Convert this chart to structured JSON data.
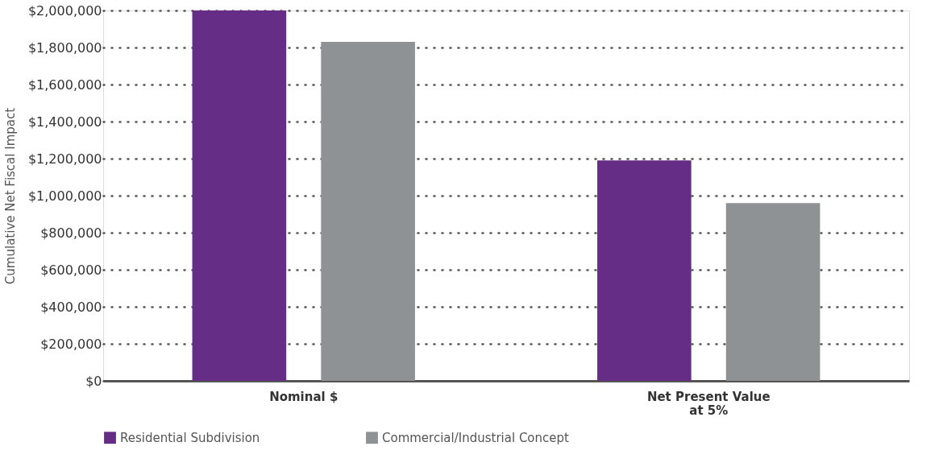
{
  "chart_data": {
    "type": "bar",
    "ylabel": "Cumulative Net Fiscal Impact",
    "categories": [
      "Nominal $",
      "Net Present Value\nat 5%"
    ],
    "series": [
      {
        "name": "Residential Subdivision",
        "color": "#652d86",
        "values": [
          2000000,
          1190000
        ]
      },
      {
        "name": "Commercial/Industrial Concept",
        "color": "#8f9295",
        "values": [
          1830000,
          960000
        ]
      }
    ],
    "ylim": [
      0,
      2000000
    ],
    "yticks": [
      {
        "value": 0,
        "label": "$0"
      },
      {
        "value": 200000,
        "label": "$200,000"
      },
      {
        "value": 400000,
        "label": "$400,000"
      },
      {
        "value": 600000,
        "label": "$600,000"
      },
      {
        "value": 800000,
        "label": "$800,000"
      },
      {
        "value": 1000000,
        "label": "$1,000,000"
      },
      {
        "value": 1200000,
        "label": "$1,200,000"
      },
      {
        "value": 1400000,
        "label": "$1,400,000"
      },
      {
        "value": 1600000,
        "label": "$1,600,000"
      },
      {
        "value": 1800000,
        "label": "$1,800,000"
      },
      {
        "value": 2000000,
        "label": "$2,000,000"
      }
    ],
    "grid": "y",
    "legend": "bottom"
  }
}
